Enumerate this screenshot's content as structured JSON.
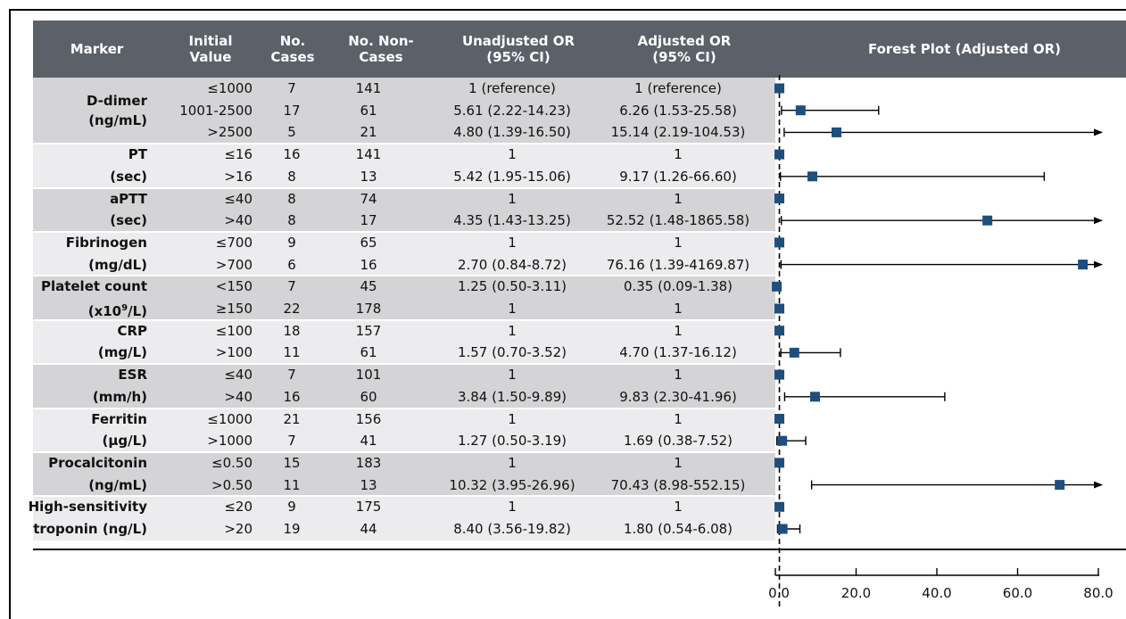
{
  "headers": {
    "marker": "Marker",
    "initial": "Initial\nValue",
    "cases": "No.\nCases",
    "noncases": "No. Non-\nCases",
    "unadj": "Unadjusted OR\n(95% CI)",
    "adj": "Adjusted OR\n(95% CI)",
    "forest": "Forest Plot (Adjusted OR)"
  },
  "markers": [
    {
      "label": "D-dimer\n(ng/mL)",
      "shade": "dark",
      "rows": [
        {
          "init": "≤1000",
          "cases": "7",
          "non": "141",
          "unadj": "1 (reference)",
          "adj": "1 (reference)"
        },
        {
          "init": "1001-2500",
          "cases": "17",
          "non": "61",
          "unadj": "5.61 (2.22-14.23)",
          "adj": "6.26 (1.53-25.58)"
        },
        {
          "init": ">2500",
          "cases": "5",
          "non": "21",
          "unadj": "4.80 (1.39-16.50)",
          "adj": "15.14 (2.19-104.53)"
        }
      ]
    },
    {
      "label": "PT\n(sec)",
      "shade": "light",
      "rows": [
        {
          "init": "≤16",
          "cases": "16",
          "non": "141",
          "unadj": "1",
          "adj": "1"
        },
        {
          "init": ">16",
          "cases": "8",
          "non": "13",
          "unadj": "5.42 (1.95-15.06)",
          "adj": "9.17 (1.26-66.60)"
        }
      ]
    },
    {
      "label": "aPTT\n(sec)",
      "shade": "dark",
      "rows": [
        {
          "init": "≤40",
          "cases": "8",
          "non": "74",
          "unadj": "1",
          "adj": "1"
        },
        {
          "init": ">40",
          "cases": "8",
          "non": "17",
          "unadj": "4.35 (1.43-13.25)",
          "adj": "52.52 (1.48-1865.58)"
        }
      ]
    },
    {
      "label": "Fibrinogen\n(mg/dL)",
      "shade": "light",
      "rows": [
        {
          "init": "≤700",
          "cases": "9",
          "non": "65",
          "unadj": "1",
          "adj": "1"
        },
        {
          "init": ">700",
          "cases": "6",
          "non": "16",
          "unadj": "2.70 (0.84-8.72)",
          "adj": "76.16 (1.39-4169.87)"
        }
      ]
    },
    {
      "label": "Platelet count\n(x10⁹/L)",
      "shade": "dark",
      "rows": [
        {
          "init": "<150",
          "cases": "7",
          "non": "45",
          "unadj": "1.25 (0.50-3.11)",
          "adj": "0.35 (0.09-1.38)"
        },
        {
          "init": "≥150",
          "cases": "22",
          "non": "178",
          "unadj": "1",
          "adj": "1"
        }
      ]
    },
    {
      "label": "CRP\n(mg/L)",
      "shade": "light",
      "rows": [
        {
          "init": "≤100",
          "cases": "18",
          "non": "157",
          "unadj": "1",
          "adj": "1"
        },
        {
          "init": ">100",
          "cases": "11",
          "non": "61",
          "unadj": "1.57 (0.70-3.52)",
          "adj": "4.70 (1.37-16.12)"
        }
      ]
    },
    {
      "label": "ESR\n(mm/h)",
      "shade": "dark",
      "rows": [
        {
          "init": "≤40",
          "cases": "7",
          "non": "101",
          "unadj": "1",
          "adj": "1"
        },
        {
          "init": ">40",
          "cases": "16",
          "non": "60",
          "unadj": "3.84 (1.50-9.89)",
          "adj": "9.83 (2.30-41.96)"
        }
      ]
    },
    {
      "label": "Ferritin\n(µg/L)",
      "shade": "light",
      "rows": [
        {
          "init": "≤1000",
          "cases": "21",
          "non": "156",
          "unadj": "1",
          "adj": "1"
        },
        {
          "init": ">1000",
          "cases": "7",
          "non": "41",
          "unadj": "1.27 (0.50-3.19)",
          "adj": "1.69 (0.38-7.52)"
        }
      ]
    },
    {
      "label": "Procalcitonin\n(ng/mL)",
      "shade": "dark",
      "rows": [
        {
          "init": "≤0.50",
          "cases": "15",
          "non": "183",
          "unadj": "1",
          "adj": "1"
        },
        {
          "init": ">0.50",
          "cases": "11",
          "non": "13",
          "unadj": "10.32 (3.95-26.96)",
          "adj": "70.43 (8.98-552.15)"
        }
      ]
    },
    {
      "label": "High-sensitivity\ntroponin (ng/L)",
      "shade": "light",
      "rows": [
        {
          "init": "≤20",
          "cases": "9",
          "non": "175",
          "unadj": "1",
          "adj": "1"
        },
        {
          "init": ">20",
          "cases": "19",
          "non": "44",
          "unadj": "8.40 (3.56-19.82)",
          "adj": "1.80 (0.54-6.08)"
        }
      ]
    }
  ],
  "chart_data": {
    "type": "forest",
    "title": "Forest Plot (Adjusted OR)",
    "xlim": [
      0,
      80
    ],
    "xticks": [
      "0.0",
      "20.0",
      "40.0",
      "60.0",
      "80.0"
    ],
    "reference_line": 1,
    "marker_color": "#1e4e80",
    "points": [
      {
        "or": 1,
        "lo": null,
        "hi": null
      },
      {
        "or": 6.26,
        "lo": 1.53,
        "hi": 25.58
      },
      {
        "or": 15.14,
        "lo": 2.19,
        "hi": 104.53
      },
      {
        "or": 1,
        "lo": null,
        "hi": null
      },
      {
        "or": 9.17,
        "lo": 1.26,
        "hi": 66.6
      },
      {
        "or": 1,
        "lo": null,
        "hi": null
      },
      {
        "or": 52.52,
        "lo": 1.48,
        "hi": 1865.58
      },
      {
        "or": 1,
        "lo": null,
        "hi": null
      },
      {
        "or": 76.16,
        "lo": 1.39,
        "hi": 4169.87
      },
      {
        "or": 0.35,
        "lo": 0.09,
        "hi": 1.38
      },
      {
        "or": 1,
        "lo": null,
        "hi": null
      },
      {
        "or": 1,
        "lo": null,
        "hi": null
      },
      {
        "or": 4.7,
        "lo": 1.37,
        "hi": 16.12
      },
      {
        "or": 1,
        "lo": null,
        "hi": null
      },
      {
        "or": 9.83,
        "lo": 2.3,
        "hi": 41.96
      },
      {
        "or": 1,
        "lo": null,
        "hi": null
      },
      {
        "or": 1.69,
        "lo": 0.38,
        "hi": 7.52
      },
      {
        "or": 1,
        "lo": null,
        "hi": null
      },
      {
        "or": 70.43,
        "lo": 8.98,
        "hi": 552.15
      },
      {
        "or": 1,
        "lo": null,
        "hi": null
      },
      {
        "or": 1.8,
        "lo": 0.54,
        "hi": 6.08
      }
    ]
  }
}
